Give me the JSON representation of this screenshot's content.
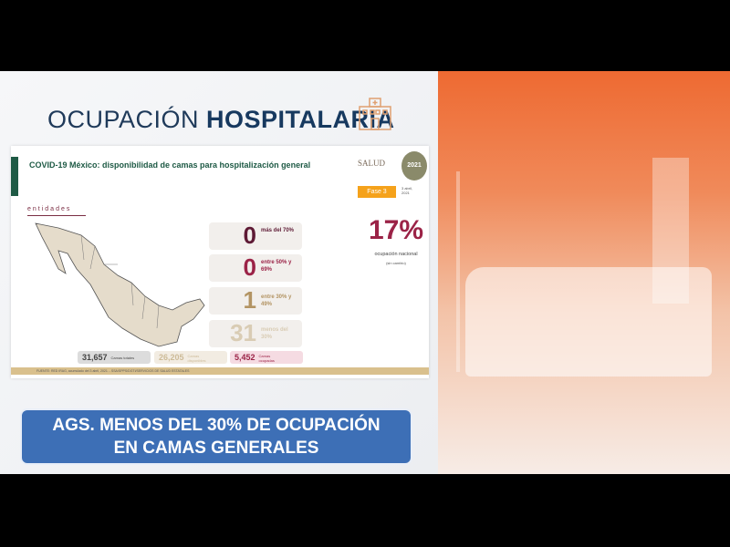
{
  "header": {
    "title_light": "OCUPACIÓN",
    "title_bold": "HOSPITALARIA"
  },
  "slide": {
    "title": "COVID-19 México: disponibilidad de camas para hospitalización general",
    "salud": "SALUD",
    "logo_year": "2021",
    "fase": "Fase 3",
    "date": "3 abril, 2021",
    "entidades": "entidades",
    "cards": [
      {
        "num": "0",
        "label": "más del 70%",
        "color": "#5e1a35"
      },
      {
        "num": "0",
        "label": "entre 50% y 69%",
        "color": "#9b2347"
      },
      {
        "num": "1",
        "label": "entre 30% y 49%",
        "color": "#b39463"
      },
      {
        "num": "31",
        "label": "menos del 30%",
        "color": "#d9ccb4"
      }
    ],
    "national_pct": "17%",
    "national_label": "ocupación nacional",
    "national_sub": "(sin cambio)",
    "totals": [
      {
        "value": "31,657",
        "label": "Camas totales"
      },
      {
        "value": "26,205",
        "label": "Camas disponibles"
      },
      {
        "value": "5,452",
        "label": "Camas ocupadas"
      }
    ],
    "source": "FUENTE: RED IRAG, acumulado del 3 abril, 2021. - SSA/SPPS/DGTI/SERVICIOS DE SALUD ESTATALES"
  },
  "banner": {
    "line1": "AGS. MENOS DEL 30% DE OCUPACIÓN",
    "line2": "EN CAMAS GENERALES"
  }
}
